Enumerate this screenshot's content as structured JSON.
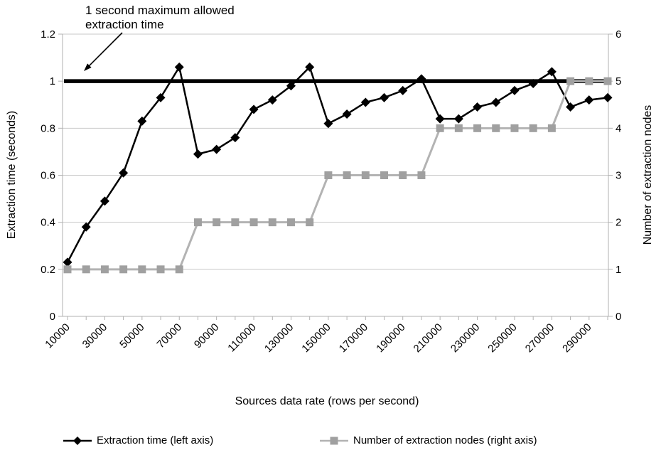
{
  "chart_data": {
    "type": "line",
    "x": [
      10000,
      20000,
      30000,
      40000,
      50000,
      60000,
      70000,
      80000,
      90000,
      100000,
      110000,
      120000,
      130000,
      140000,
      150000,
      160000,
      170000,
      180000,
      190000,
      200000,
      210000,
      220000,
      230000,
      240000,
      250000,
      260000,
      270000,
      280000,
      290000,
      300000
    ],
    "x_tick_labels": [
      "10000",
      "30000",
      "50000",
      "70000",
      "90000",
      "110000",
      "130000",
      "150000",
      "170000",
      "190000",
      "210000",
      "230000",
      "250000",
      "270000",
      "290000"
    ],
    "series": [
      {
        "name": "Extraction time (left axis)",
        "axis": "left",
        "marker": "diamond",
        "line_color": "#000000",
        "marker_color": "#000000",
        "values": [
          0.23,
          0.38,
          0.49,
          0.61,
          0.83,
          0.93,
          1.06,
          0.69,
          0.71,
          0.76,
          0.88,
          0.92,
          0.98,
          1.06,
          0.82,
          0.86,
          0.91,
          0.93,
          0.96,
          1.01,
          0.84,
          0.84,
          0.89,
          0.91,
          0.96,
          0.99,
          1.04,
          0.89,
          0.92,
          0.93
        ]
      },
      {
        "name": "Number of extraction nodes (right axis)",
        "axis": "right",
        "marker": "square",
        "line_color": "#b3b3b3",
        "marker_color": "#a0a0a0",
        "values": [
          1,
          1,
          1,
          1,
          1,
          1,
          1,
          2,
          2,
          2,
          2,
          2,
          2,
          2,
          3,
          3,
          3,
          3,
          3,
          3,
          4,
          4,
          4,
          4,
          4,
          4,
          4,
          5,
          5,
          5
        ]
      }
    ],
    "max_line": {
      "value": 1,
      "color": "#000000",
      "annotation": "1 second maximum allowed extraction time",
      "annotation_lines": [
        "1 second maximum allowed",
        "extraction time"
      ]
    },
    "title": "",
    "xlabel": "Sources data rate (rows per second)",
    "ylabel_left": "Extraction time (seconds)",
    "ylabel_right": "Number of extraction nodes",
    "ylim_left": [
      0,
      1.2
    ],
    "ylim_right": [
      0,
      6
    ],
    "left_ticks": [
      "0",
      "0.2",
      "0.4",
      "0.6",
      "0.8",
      "1",
      "1.2"
    ],
    "right_ticks": [
      "0",
      "1",
      "2",
      "3",
      "4",
      "5",
      "6"
    ],
    "grid": "horizontal",
    "legend_position": "bottom"
  },
  "legend": {
    "items": [
      {
        "label": "Extraction time (left axis)"
      },
      {
        "label": "Number of extraction nodes (right axis)"
      }
    ]
  },
  "colors": {
    "background": "#ffffff",
    "grid": "#c8c8c8",
    "axis": "#b0b0b0",
    "text": "#000000",
    "series1": "#000000",
    "series2_line": "#b3b3b3",
    "series2_marker": "#a0a0a0"
  }
}
